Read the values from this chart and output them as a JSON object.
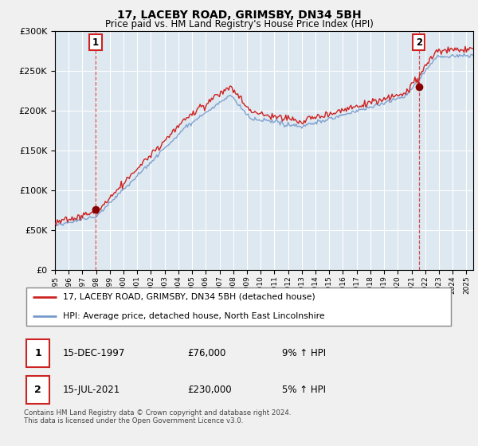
{
  "title": "17, LACEBY ROAD, GRIMSBY, DN34 5BH",
  "subtitle": "Price paid vs. HM Land Registry's House Price Index (HPI)",
  "legend_line1": "17, LACEBY ROAD, GRIMSBY, DN34 5BH (detached house)",
  "legend_line2": "HPI: Average price, detached house, North East Lincolnshire",
  "table_row1": [
    "1",
    "15-DEC-1997",
    "£76,000",
    "9% ↑ HPI"
  ],
  "table_row2": [
    "2",
    "15-JUL-2021",
    "£230,000",
    "5% ↑ HPI"
  ],
  "footnote": "Contains HM Land Registry data © Crown copyright and database right 2024.\nThis data is licensed under the Open Government Licence v3.0.",
  "sale1_year": 1997.96,
  "sale1_price": 76000,
  "sale2_year": 2021.54,
  "sale2_price": 230000,
  "house_color": "#cc2222",
  "hpi_color": "#7799cc",
  "marker_color": "#880000",
  "dashed_color": "#cc2222",
  "ylim_min": 0,
  "ylim_max": 300000,
  "xlim_min": 1995.0,
  "xlim_max": 2025.5,
  "plot_bg_color": "#dde8f0",
  "background_color": "#f0f0f0",
  "grid_color": "#ffffff"
}
